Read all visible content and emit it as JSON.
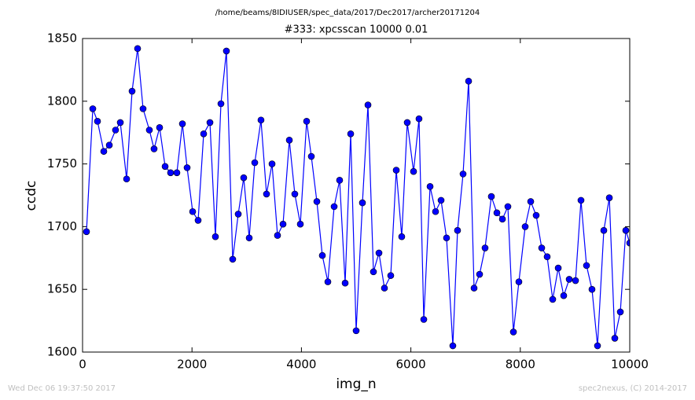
{
  "chart_data": {
    "type": "line",
    "suptitle": "/home/beams/8IDIUSER/spec_data/2017/Dec2017/archer20171204",
    "title": "#333: xpcsscan 10000 0.01",
    "xlabel": "img_n",
    "ylabel": "ccdc",
    "timestamp": "Wed Dec 06 19:37:50 2017",
    "credit": "spec2nexus, (C) 2014-2017",
    "color": "#0000ff",
    "marker_edge": "#000000",
    "xlim": [
      0,
      10000
    ],
    "xticks": [
      0,
      2000,
      4000,
      6000,
      8000,
      10000
    ],
    "ylim": [
      1600,
      1850
    ],
    "yticks": [
      1600,
      1650,
      1700,
      1750,
      1800,
      1850
    ],
    "grid": false,
    "x": [
      72,
      187,
      273,
      388,
      489,
      603,
      690,
      805,
      905,
      1006,
      1106,
      1221,
      1307,
      1408,
      1509,
      1609,
      1724,
      1825,
      1911,
      2012,
      2112,
      2213,
      2328,
      2428,
      2529,
      2629,
      2744,
      2845,
      2945,
      3046,
      3147,
      3261,
      3362,
      3463,
      3563,
      3664,
      3779,
      3879,
      3980,
      4095,
      4181,
      4282,
      4382,
      4483,
      4598,
      4698,
      4799,
      4900,
      5000,
      5115,
      5216,
      5316,
      5417,
      5517,
      5632,
      5733,
      5833,
      5934,
      6049,
      6149,
      6236,
      6351,
      6451,
      6552,
      6652,
      6767,
      6853,
      6954,
      7055,
      7155,
      7256,
      7356,
      7471,
      7572,
      7673,
      7773,
      7874,
      7974,
      8089,
      8190,
      8290,
      8391,
      8491,
      8592,
      8693,
      8793,
      8894,
      9009,
      9109,
      9210,
      9310,
      9411,
      9526,
      9627,
      9727,
      9828,
      9928,
      10000
    ],
    "values": [
      1696,
      1794,
      1784,
      1760,
      1765,
      1777,
      1783,
      1738,
      1808,
      1842,
      1794,
      1777,
      1762,
      1779,
      1748,
      1743,
      1743,
      1782,
      1747,
      1712,
      1705,
      1774,
      1783,
      1692,
      1798,
      1840,
      1674,
      1710,
      1739,
      1691,
      1751,
      1785,
      1726,
      1750,
      1693,
      1702,
      1769,
      1726,
      1702,
      1784,
      1756,
      1720,
      1677,
      1656,
      1716,
      1737,
      1655,
      1774,
      1617,
      1719,
      1797,
      1664,
      1679,
      1651,
      1661,
      1745,
      1692,
      1783,
      1744,
      1786,
      1626,
      1732,
      1712,
      1721,
      1691,
      1605,
      1697,
      1742,
      1816,
      1651,
      1662,
      1683,
      1724,
      1711,
      1706,
      1716,
      1616,
      1656,
      1700,
      1720,
      1709,
      1683,
      1676,
      1642,
      1667,
      1645,
      1658,
      1657,
      1721,
      1669,
      1650,
      1605,
      1697,
      1723,
      1611,
      1632,
      1697,
      1687
    ]
  }
}
